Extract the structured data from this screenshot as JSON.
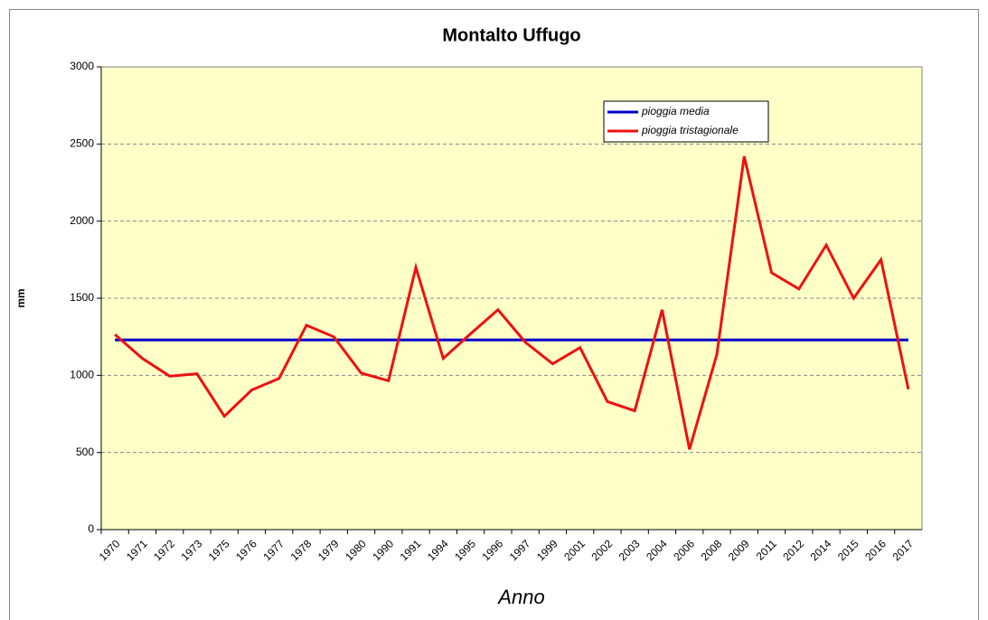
{
  "chart_data": {
    "type": "line",
    "title": "Montalto Uffugo",
    "x_label": "Anno",
    "y_label": "mm",
    "categories": [
      "1970",
      "1971",
      "1972",
      "1973",
      "1975",
      "1976",
      "1977",
      "1978",
      "1979",
      "1980",
      "1990",
      "1991",
      "1994",
      "1995",
      "1996",
      "1997",
      "1999",
      "2001",
      "2002",
      "2003",
      "2004",
      "2006",
      "2008",
      "2009",
      "2011",
      "2012",
      "2014",
      "2015",
      "2016",
      "2017"
    ],
    "series": [
      {
        "name": "pioggia media",
        "color": "#0000cc",
        "values": [
          1230,
          1230,
          1230,
          1230,
          1230,
          1230,
          1230,
          1230,
          1230,
          1230,
          1230,
          1230,
          1230,
          1230,
          1230,
          1230,
          1230,
          1230,
          1230,
          1230,
          1230,
          1230,
          1230,
          1230,
          1230,
          1230,
          1230,
          1230,
          1230,
          1230
        ]
      },
      {
        "name": "pioggia tristagionale",
        "color": "#ee1111",
        "values": [
          1265,
          1110,
          995,
          1010,
          735,
          905,
          980,
          1325,
          1250,
          1015,
          965,
          1700,
          1110,
          1270,
          1425,
          1215,
          1075,
          1180,
          830,
          770,
          1425,
          520,
          1135,
          2420,
          1665,
          1560,
          1845,
          1500,
          1750,
          910
        ]
      }
    ],
    "ylim": [
      0,
      3000
    ],
    "yticks": [
      0,
      500,
      1000,
      1500,
      2000,
      2500,
      3000
    ],
    "grid": true,
    "plot_background": "#ffffc8"
  }
}
